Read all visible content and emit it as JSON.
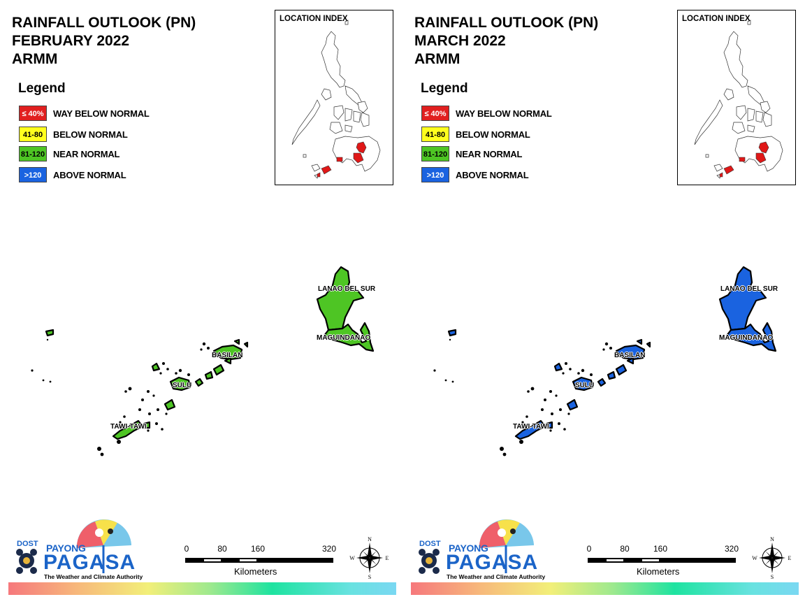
{
  "colors": {
    "way_below_normal": "#e11f1f",
    "below_normal": "#ffff1e",
    "near_normal": "#4ec524",
    "above_normal": "#1a63e0",
    "loc_highlight": "#e01818",
    "brand_blue": "#1b64c8"
  },
  "legend": {
    "heading": "Legend",
    "items": [
      {
        "swatch": "≤ 40%",
        "label": "WAY BELOW NORMAL",
        "color": "#e11f1f",
        "text_color": "#ffffff"
      },
      {
        "swatch": "41-80",
        "label": "BELOW NORMAL",
        "color": "#ffff1e",
        "text_color": "#000000"
      },
      {
        "swatch": "81-120",
        "label": "NEAR NORMAL",
        "color": "#4ec524",
        "text_color": "#000000"
      },
      {
        "swatch": ">120",
        "label": "ABOVE NORMAL",
        "color": "#1a63e0",
        "text_color": "#ffffff"
      }
    ]
  },
  "location_index": {
    "title": "LOCATION INDEX"
  },
  "provinces": {
    "lanao_del_sur": "LANAO DEL SUR",
    "maguindanao": "MAGUINDANAO",
    "basilan": "BASILAN",
    "sulu": "SULU",
    "tawi_tawi": "TAWI-TAWI"
  },
  "logo": {
    "dost": "DOST",
    "payong": "PAYONG",
    "pagasa": "PAGASA",
    "tagline": "The Weather and Climate Authority"
  },
  "scalebar": {
    "ticks": [
      "0",
      "80",
      "160",
      "320"
    ],
    "unit": "Kilometers"
  },
  "compass": {
    "n": "N",
    "e": "E",
    "s": "S",
    "w": "W"
  },
  "panels": [
    {
      "title": [
        "RAINFALL OUTLOOK (PN)",
        "FEBRUARY 2022",
        "ARMM"
      ],
      "category": "near_normal",
      "fill": "#4ec524"
    },
    {
      "title": [
        "RAINFALL OUTLOOK (PN)",
        "MARCH 2022",
        "ARMM"
      ],
      "category": "above_normal",
      "fill": "#1a63e0"
    }
  ]
}
